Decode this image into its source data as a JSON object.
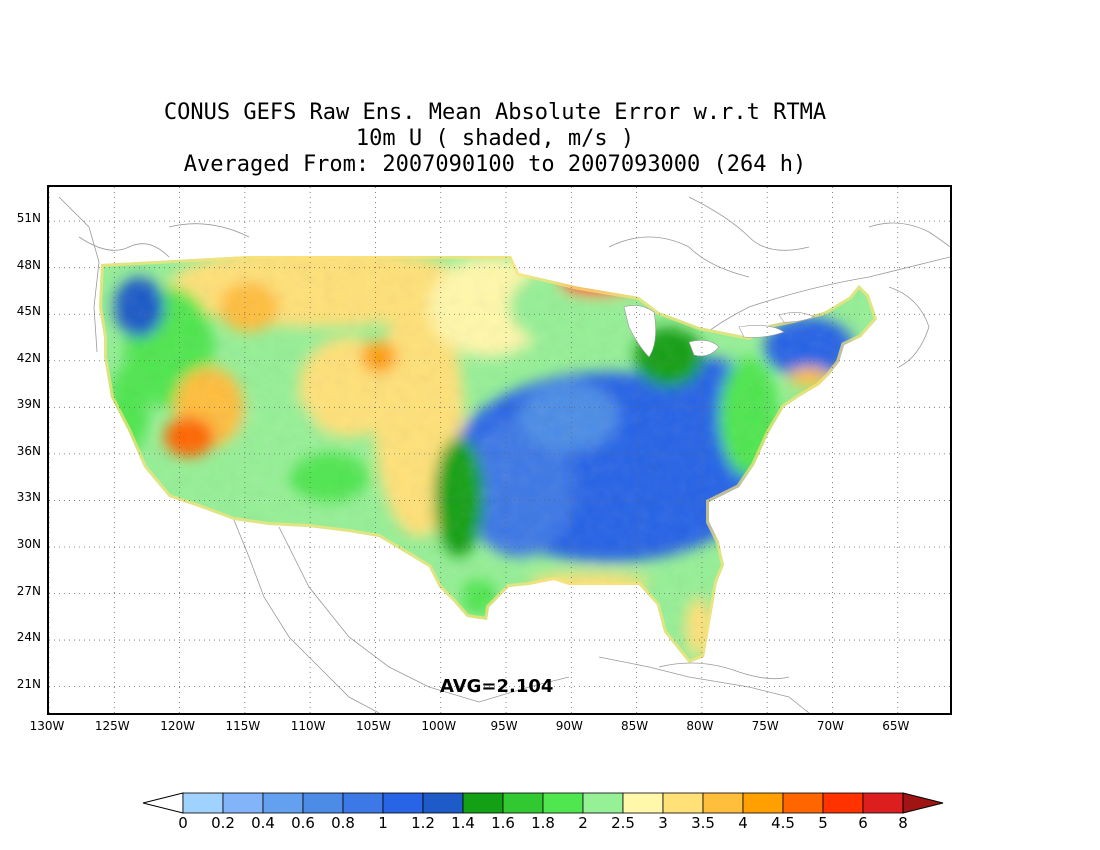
{
  "title": {
    "line1": "CONUS GEFS Raw Ens. Mean Absolute Error w.r.t RTMA",
    "line2": "10m U ( shaded, m/s )",
    "line3": "Averaged From: 2007090100 to 2007093000 (264 h)"
  },
  "avg_label": "AVG=2.104",
  "map": {
    "lon_range": [
      -130,
      -61
    ],
    "lat_range": [
      19.3,
      53.2
    ],
    "lat_ticks": [
      "51N",
      "48N",
      "45N",
      "42N",
      "39N",
      "36N",
      "33N",
      "30N",
      "27N",
      "24N",
      "21N"
    ],
    "lat_values": [
      51,
      48,
      45,
      42,
      39,
      36,
      33,
      30,
      27,
      24,
      21
    ],
    "lon_ticks": [
      "130W",
      "125W",
      "120W",
      "115W",
      "110W",
      "105W",
      "100W",
      "95W",
      "90W",
      "85W",
      "80W",
      "75W",
      "70W",
      "65W"
    ],
    "lon_values": [
      -130,
      -125,
      -120,
      -115,
      -110,
      -105,
      -100,
      -95,
      -90,
      -85,
      -80,
      -75,
      -70,
      -65
    ],
    "grid": "dotted"
  },
  "colorbar": {
    "labels": [
      "0",
      "0.2",
      "0.4",
      "0.6",
      "0.8",
      "1",
      "1.2",
      "1.4",
      "1.6",
      "1.8",
      "2",
      "2.5",
      "3",
      "3.5",
      "4",
      "4.5",
      "5",
      "6",
      "8"
    ],
    "colors": [
      "#a0d2ff",
      "#82b4fa",
      "#64a0f0",
      "#4c8ce6",
      "#3c78e6",
      "#2864e6",
      "#1e5ac8",
      "#14a014",
      "#32c832",
      "#50e650",
      "#96f096",
      "#fff8aa",
      "#ffe178",
      "#ffbe3c",
      "#ff9f00",
      "#ff6600",
      "#ff3200",
      "#dc1e1e"
    ],
    "under_color": "#ffffff",
    "over_color": "#a01414"
  }
}
